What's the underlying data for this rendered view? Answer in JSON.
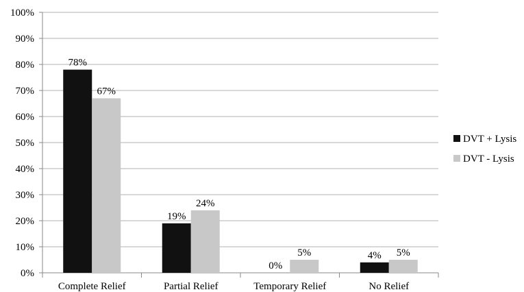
{
  "chart_data": {
    "type": "bar",
    "categories": [
      "Complete Relief",
      "Partial Relief",
      "Temporary Relief",
      "No Relief"
    ],
    "series": [
      {
        "name": "DVT + Lysis",
        "values": [
          78,
          19,
          0,
          4
        ],
        "labels": [
          "78%",
          "19%",
          "0%",
          "4%"
        ],
        "color": "#111111"
      },
      {
        "name": "DVT - Lysis",
        "values": [
          67,
          24,
          5,
          5
        ],
        "labels": [
          "67%",
          "24%",
          "5%",
          "5%"
        ],
        "color": "#c8c8c8"
      }
    ],
    "ylim": [
      0,
      100
    ],
    "yticks": [
      "0%",
      "10%",
      "20%",
      "30%",
      "40%",
      "50%",
      "60%",
      "70%",
      "80%",
      "90%",
      "100%"
    ],
    "grid": true,
    "legend": "right",
    "colors": {
      "gridline": "#b0b0b0",
      "axis": "#888888"
    }
  }
}
